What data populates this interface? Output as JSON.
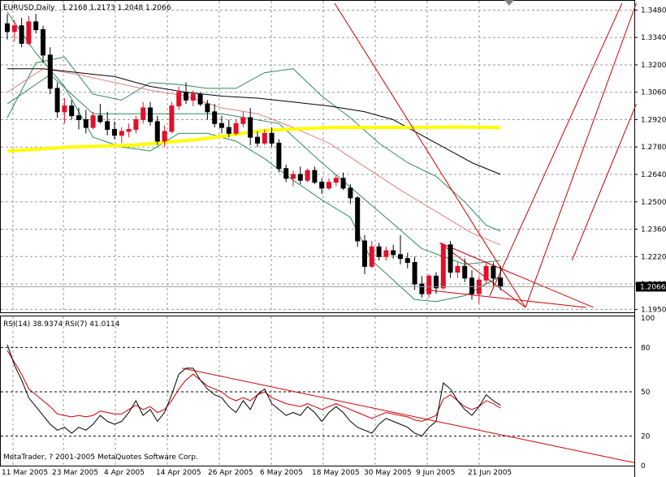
{
  "colors": {
    "background": "#ffffff",
    "grid": "#9a9a9a",
    "bull_body": "#ffffff",
    "bear_body": "#000000",
    "candle_bull": "#e0102c",
    "candle_bear": "#000000",
    "ma_slow": "#000000",
    "ma_long": "#ffff00",
    "ma_fast": "#e08080",
    "bands": "#2e8b57",
    "trendline": "#cc0000",
    "rsi14": "#cc0000",
    "rsi7": "#000000"
  },
  "chart_data": {
    "type": "candlestick",
    "symbol_label": "EURUSD,Daily",
    "ohlc_header": "1.2168 1.2173 1.2048 1.2066",
    "current_price_label": "1.2066",
    "current_price": 1.2066,
    "ylim": [
      1.1935,
      1.3515
    ],
    "yticks": [
      "1.3480",
      "1.3340",
      "1.3200",
      "1.3060",
      "1.2920",
      "1.2780",
      "1.2640",
      "1.2500",
      "1.2360",
      "1.2220",
      "1.2080",
      "1.1950"
    ],
    "xticks": [
      "11 Mar 2005",
      "23 Mar 2005",
      "4 Apr 2005",
      "14 Apr 2005",
      "26 Apr 2005",
      "6 May 2005",
      "18 May 2005",
      "30 May 2005",
      "9 Jun 2005",
      "21 Jun 2005"
    ],
    "candles": [
      [
        1.341,
        1.346,
        1.333,
        1.337
      ],
      [
        1.337,
        1.343,
        1.332,
        1.34
      ],
      [
        1.34,
        1.344,
        1.329,
        1.331
      ],
      [
        1.331,
        1.345,
        1.33,
        1.342
      ],
      [
        1.342,
        1.346,
        1.336,
        1.338
      ],
      [
        1.338,
        1.34,
        1.321,
        1.325
      ],
      [
        1.325,
        1.329,
        1.305,
        1.308
      ],
      [
        1.308,
        1.311,
        1.293,
        1.296
      ],
      [
        1.296,
        1.303,
        1.29,
        1.299
      ],
      [
        1.299,
        1.302,
        1.292,
        1.294
      ],
      [
        1.294,
        1.298,
        1.287,
        1.292
      ],
      [
        1.292,
        1.297,
        1.285,
        1.288
      ],
      [
        1.288,
        1.296,
        1.287,
        1.294
      ],
      [
        1.294,
        1.3,
        1.29,
        1.291
      ],
      [
        1.291,
        1.296,
        1.284,
        1.287
      ],
      [
        1.287,
        1.291,
        1.282,
        1.284
      ],
      [
        1.284,
        1.288,
        1.28,
        1.286
      ],
      [
        1.286,
        1.29,
        1.283,
        1.287
      ],
      [
        1.287,
        1.294,
        1.285,
        1.292
      ],
      [
        1.292,
        1.301,
        1.29,
        1.298
      ],
      [
        1.298,
        1.301,
        1.289,
        1.291
      ],
      [
        1.291,
        1.294,
        1.279,
        1.281
      ],
      [
        1.281,
        1.289,
        1.278,
        1.286
      ],
      [
        1.286,
        1.301,
        1.285,
        1.299
      ],
      [
        1.299,
        1.309,
        1.297,
        1.306
      ],
      [
        1.306,
        1.311,
        1.3,
        1.302
      ],
      [
        1.302,
        1.307,
        1.299,
        1.305
      ],
      [
        1.305,
        1.306,
        1.299,
        1.3
      ],
      [
        1.3,
        1.302,
        1.292,
        1.296
      ],
      [
        1.296,
        1.3,
        1.288,
        1.29
      ],
      [
        1.29,
        1.294,
        1.285,
        1.288
      ],
      [
        1.288,
        1.292,
        1.283,
        1.285
      ],
      [
        1.285,
        1.292,
        1.284,
        1.29
      ],
      [
        1.29,
        1.296,
        1.288,
        1.293
      ],
      [
        1.293,
        1.298,
        1.279,
        1.283
      ],
      [
        1.283,
        1.286,
        1.278,
        1.28
      ],
      [
        1.28,
        1.287,
        1.279,
        1.285
      ],
      [
        1.285,
        1.288,
        1.278,
        1.28
      ],
      [
        1.28,
        1.282,
        1.265,
        1.267
      ],
      [
        1.267,
        1.269,
        1.26,
        1.262
      ],
      [
        1.262,
        1.266,
        1.258,
        1.264
      ],
      [
        1.264,
        1.268,
        1.259,
        1.261
      ],
      [
        1.261,
        1.267,
        1.26,
        1.266
      ],
      [
        1.266,
        1.268,
        1.259,
        1.26
      ],
      [
        1.26,
        1.262,
        1.254,
        1.257
      ],
      [
        1.257,
        1.262,
        1.256,
        1.26
      ],
      [
        1.26,
        1.264,
        1.258,
        1.262
      ],
      [
        1.262,
        1.265,
        1.256,
        1.257
      ],
      [
        1.257,
        1.259,
        1.249,
        1.252
      ],
      [
        1.252,
        1.253,
        1.227,
        1.23
      ],
      [
        1.23,
        1.233,
        1.213,
        1.217
      ],
      [
        1.217,
        1.23,
        1.216,
        1.227
      ],
      [
        1.227,
        1.229,
        1.22,
        1.222
      ],
      [
        1.222,
        1.227,
        1.22,
        1.225
      ],
      [
        1.225,
        1.228,
        1.221,
        1.223
      ],
      [
        1.223,
        1.233,
        1.218,
        1.221
      ],
      [
        1.221,
        1.224,
        1.216,
        1.219
      ],
      [
        1.219,
        1.222,
        1.205,
        1.208
      ],
      [
        1.208,
        1.212,
        1.201,
        1.203
      ],
      [
        1.203,
        1.213,
        1.201,
        1.212
      ],
      [
        1.212,
        1.214,
        1.203,
        1.206
      ],
      [
        1.206,
        1.229,
        1.205,
        1.228
      ],
      [
        1.228,
        1.23,
        1.211,
        1.214
      ],
      [
        1.214,
        1.219,
        1.211,
        1.217
      ],
      [
        1.217,
        1.221,
        1.209,
        1.211
      ],
      [
        1.211,
        1.215,
        1.2,
        1.203
      ],
      [
        1.203,
        1.212,
        1.198,
        1.21
      ],
      [
        1.21,
        1.219,
        1.208,
        1.217
      ],
      [
        1.217,
        1.219,
        1.207,
        1.211
      ],
      [
        1.211,
        1.2173,
        1.2048,
        1.2066
      ]
    ],
    "ma_long_line": [
      [
        0,
        1.276
      ],
      [
        9,
        1.278
      ],
      [
        18,
        1.279
      ],
      [
        27,
        1.282
      ],
      [
        36,
        1.2865
      ],
      [
        45,
        1.288
      ],
      [
        54,
        1.288
      ],
      [
        63,
        1.2882
      ],
      [
        69,
        1.288
      ]
    ],
    "ma_slow_line": [
      [
        0,
        1.318
      ],
      [
        5,
        1.318
      ],
      [
        10,
        1.316
      ],
      [
        15,
        1.314
      ],
      [
        20,
        1.309
      ],
      [
        25,
        1.306
      ],
      [
        30,
        1.304
      ],
      [
        35,
        1.303
      ],
      [
        40,
        1.301
      ],
      [
        45,
        1.299
      ],
      [
        50,
        1.296
      ],
      [
        54,
        1.292
      ],
      [
        58,
        1.284
      ],
      [
        62,
        1.276
      ],
      [
        65,
        1.27
      ],
      [
        69,
        1.264
      ]
    ],
    "ma_fast_line": [
      [
        0,
        1.306
      ],
      [
        5,
        1.318
      ],
      [
        10,
        1.315
      ],
      [
        15,
        1.311
      ],
      [
        20,
        1.307
      ],
      [
        25,
        1.304
      ],
      [
        30,
        1.298
      ],
      [
        35,
        1.295
      ],
      [
        40,
        1.288
      ],
      [
        45,
        1.28
      ],
      [
        50,
        1.268
      ],
      [
        55,
        1.256
      ],
      [
        60,
        1.245
      ],
      [
        65,
        1.234
      ],
      [
        69,
        1.228
      ]
    ],
    "band_upper": [
      [
        0,
        1.293
      ],
      [
        4,
        1.321
      ],
      [
        8,
        1.324
      ],
      [
        12,
        1.305
      ],
      [
        16,
        1.302
      ],
      [
        20,
        1.311
      ],
      [
        24,
        1.31
      ],
      [
        28,
        1.308
      ],
      [
        32,
        1.308
      ],
      [
        36,
        1.316
      ],
      [
        40,
        1.318
      ],
      [
        44,
        1.304
      ],
      [
        48,
        1.293
      ],
      [
        52,
        1.28
      ],
      [
        56,
        1.27
      ],
      [
        60,
        1.263
      ],
      [
        64,
        1.25
      ],
      [
        67,
        1.238
      ],
      [
        69,
        1.235
      ]
    ],
    "band_lower": [
      [
        0,
        1.347
      ],
      [
        4,
        1.326
      ],
      [
        8,
        1.309
      ],
      [
        12,
        1.283
      ],
      [
        16,
        1.278
      ],
      [
        20,
        1.276
      ],
      [
        24,
        1.285
      ],
      [
        28,
        1.285
      ],
      [
        32,
        1.281
      ],
      [
        36,
        1.272
      ],
      [
        40,
        1.261
      ],
      [
        44,
        1.251
      ],
      [
        48,
        1.242
      ],
      [
        51,
        1.22
      ],
      [
        54,
        1.21
      ],
      [
        57,
        1.2
      ],
      [
        60,
        1.199
      ],
      [
        64,
        1.202
      ],
      [
        67,
        1.208
      ],
      [
        69,
        1.212
      ]
    ],
    "band_mid_extra": [
      [
        0,
        1.3
      ],
      [
        6,
        1.315
      ],
      [
        12,
        1.295
      ],
      [
        20,
        1.295
      ],
      [
        30,
        1.295
      ],
      [
        38,
        1.29
      ],
      [
        44,
        1.27
      ],
      [
        52,
        1.245
      ],
      [
        58,
        1.226
      ],
      [
        64,
        1.218
      ],
      [
        69,
        1.22
      ]
    ],
    "rsi_header": "RSI(14) 38.9374 RSI(7) 41.0114",
    "rsi_ylim": [
      0,
      100
    ],
    "rsi_yticks": [
      "100",
      "80",
      "50",
      "20",
      "0"
    ],
    "rsi14": [
      78,
      70,
      62,
      52,
      48,
      44,
      40,
      35,
      34,
      33,
      34,
      33,
      34,
      37,
      36,
      35,
      35,
      38,
      41,
      38,
      40,
      36,
      38,
      44,
      52,
      58,
      62,
      58,
      54,
      52,
      50,
      46,
      44,
      46,
      44,
      48,
      50,
      46,
      44,
      42,
      41,
      40,
      42,
      40,
      38,
      40,
      42,
      40,
      38,
      36,
      34,
      32,
      34,
      36,
      35,
      34,
      33,
      31,
      30,
      32,
      34,
      45,
      48,
      44,
      40,
      38,
      40,
      44,
      42,
      39
    ],
    "rsi7": [
      82,
      68,
      58,
      46,
      40,
      34,
      28,
      24,
      26,
      22,
      26,
      24,
      28,
      34,
      30,
      28,
      30,
      36,
      44,
      34,
      38,
      30,
      36,
      48,
      62,
      66,
      66,
      58,
      52,
      48,
      46,
      40,
      36,
      44,
      38,
      48,
      52,
      42,
      38,
      34,
      36,
      34,
      40,
      36,
      30,
      36,
      40,
      36,
      30,
      26,
      24,
      22,
      28,
      32,
      30,
      28,
      26,
      22,
      20,
      26,
      30,
      56,
      52,
      44,
      38,
      34,
      40,
      48,
      44,
      41
    ]
  },
  "footer": {
    "copyright": "MetaTrader, ? 2001-2005 MetaQuotes Software Corp."
  }
}
